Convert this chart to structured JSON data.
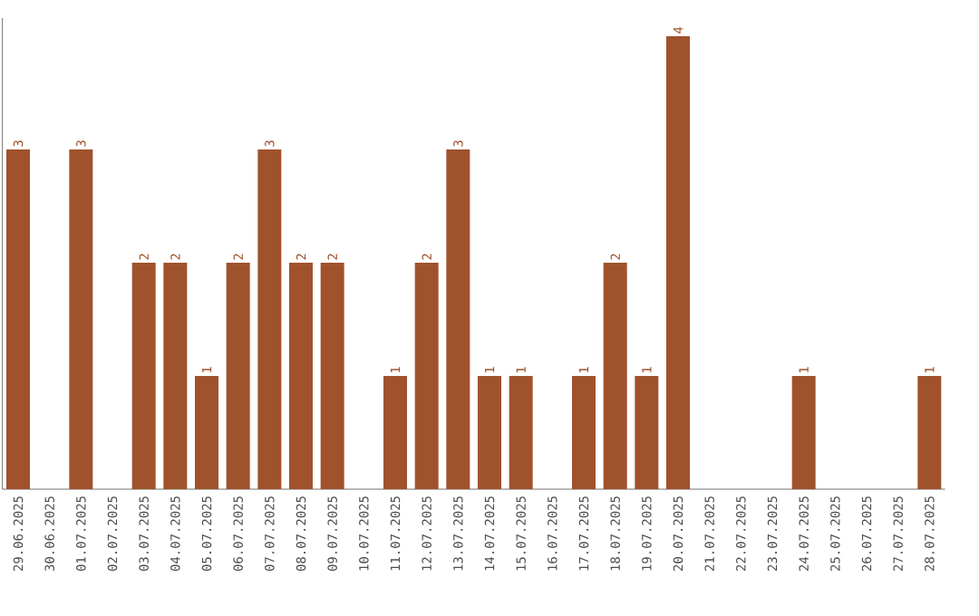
{
  "chart_data": {
    "type": "bar",
    "categories": [
      "29.06.2025",
      "30.06.2025",
      "01.07.2025",
      "02.07.2025",
      "03.07.2025",
      "04.07.2025",
      "05.07.2025",
      "06.07.2025",
      "07.07.2025",
      "08.07.2025",
      "09.07.2025",
      "10.07.2025",
      "11.07.2025",
      "12.07.2025",
      "13.07.2025",
      "14.07.2025",
      "15.07.2025",
      "16.07.2025",
      "17.07.2025",
      "18.07.2025",
      "19.07.2025",
      "20.07.2025",
      "21.07.2025",
      "22.07.2025",
      "23.07.2025",
      "24.07.2025",
      "25.07.2025",
      "26.07.2025",
      "27.07.2025",
      "28.07.2025"
    ],
    "values": [
      3,
      0,
      3,
      0,
      2,
      2,
      1,
      2,
      3,
      2,
      2,
      0,
      1,
      2,
      3,
      1,
      1,
      0,
      1,
      2,
      1,
      4,
      0,
      0,
      0,
      1,
      0,
      0,
      0,
      1
    ],
    "value_labels": [
      "3",
      null,
      "3",
      null,
      "2",
      "2",
      "1",
      "2",
      "3",
      "2",
      "2",
      null,
      "1",
      "2",
      "3",
      "1",
      "1",
      null,
      "1",
      "2",
      "1",
      "4",
      null,
      null,
      null,
      "1",
      null,
      null,
      null,
      "1"
    ],
    "color": "#a0522d",
    "ylim": [
      0,
      4.16
    ],
    "tick_labels": "x"
  }
}
